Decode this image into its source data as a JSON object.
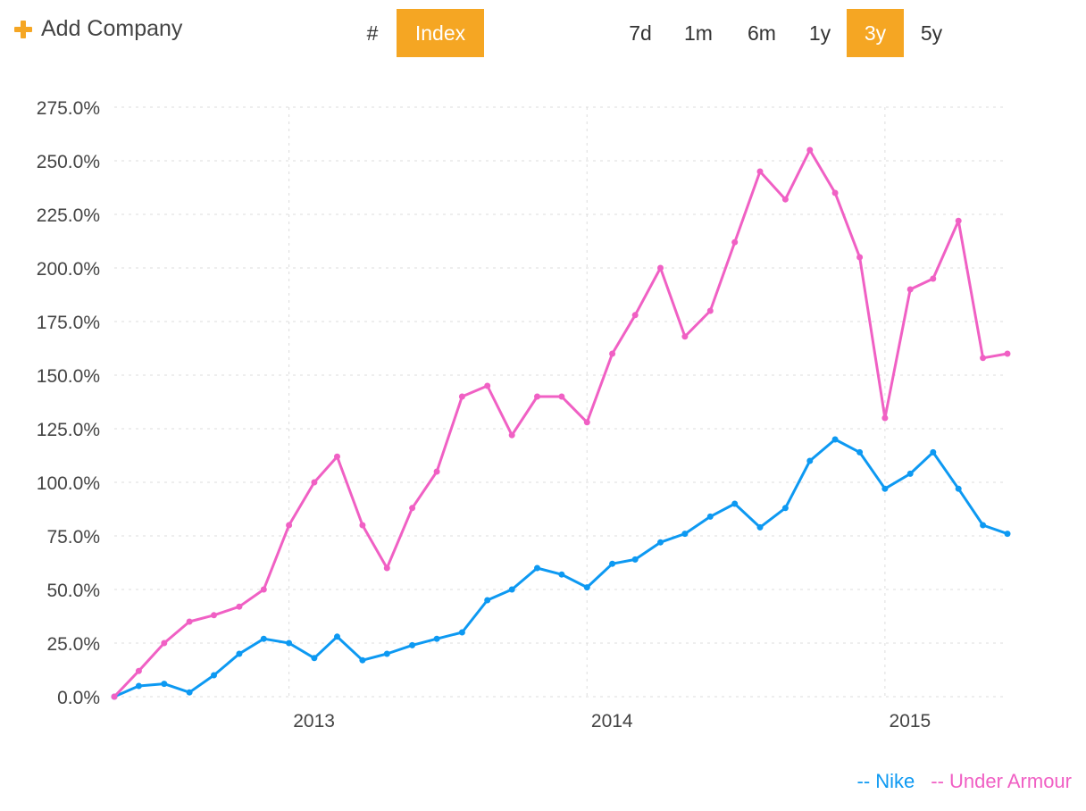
{
  "toolbar": {
    "add_company_label": "Add Company",
    "mode_buttons": [
      {
        "label": "#",
        "active": false
      },
      {
        "label": "Index",
        "active": true
      }
    ],
    "range_buttons": [
      {
        "label": "7d",
        "active": false
      },
      {
        "label": "1m",
        "active": false
      },
      {
        "label": "6m",
        "active": false
      },
      {
        "label": "1y",
        "active": false
      },
      {
        "label": "3y",
        "active": true
      },
      {
        "label": "5y",
        "active": false
      }
    ]
  },
  "colors": {
    "accent": "#f5a623",
    "nike": "#0d99f2",
    "under_armour": "#f060c4",
    "grid": "#dddddd",
    "axis_text": "#444444"
  },
  "legend": {
    "items": [
      {
        "label": "-- Nike",
        "color": "#0d99f2"
      },
      {
        "label": "-- Under Armour",
        "color": "#f060c4"
      }
    ]
  },
  "chart_data": {
    "type": "line",
    "y_axis": {
      "min": 0,
      "max": 275,
      "ticks": [
        0,
        25,
        50,
        75,
        100,
        125,
        150,
        175,
        200,
        225,
        250,
        275
      ],
      "tick_labels": [
        "0.0%",
        "25.0%",
        "50.0%",
        "75.0%",
        "100.0%",
        "125.0%",
        "150.0%",
        "175.0%",
        "200.0%",
        "225.0%",
        "250.0%",
        "275.0%"
      ]
    },
    "x_axis": {
      "min": "2012-06-01",
      "max": "2015-05-31",
      "ticks": [
        "2013-01-01",
        "2014-01-01",
        "2015-01-01"
      ],
      "tick_labels": [
        "2013",
        "2014",
        "2015"
      ]
    },
    "grid": true,
    "legend_position": "bottom-right",
    "series": [
      {
        "name": "Nike",
        "points": [
          [
            "2012-06-01",
            0
          ],
          [
            "2012-07-01",
            5
          ],
          [
            "2012-08-01",
            6
          ],
          [
            "2012-09-01",
            2
          ],
          [
            "2012-10-01",
            10
          ],
          [
            "2012-11-01",
            20
          ],
          [
            "2012-12-01",
            27
          ],
          [
            "2013-01-01",
            25
          ],
          [
            "2013-02-01",
            18
          ],
          [
            "2013-03-01",
            28
          ],
          [
            "2013-04-01",
            17
          ],
          [
            "2013-05-01",
            20
          ],
          [
            "2013-06-01",
            24
          ],
          [
            "2013-07-01",
            27
          ],
          [
            "2013-08-01",
            30
          ],
          [
            "2013-09-01",
            45
          ],
          [
            "2013-10-01",
            50
          ],
          [
            "2013-11-01",
            60
          ],
          [
            "2013-12-01",
            57
          ],
          [
            "2014-01-01",
            51
          ],
          [
            "2014-02-01",
            62
          ],
          [
            "2014-03-01",
            64
          ],
          [
            "2014-04-01",
            72
          ],
          [
            "2014-05-01",
            76
          ],
          [
            "2014-06-01",
            84
          ],
          [
            "2014-07-01",
            90
          ],
          [
            "2014-08-01",
            79
          ],
          [
            "2014-09-01",
            88
          ],
          [
            "2014-10-01",
            110
          ],
          [
            "2014-11-01",
            120
          ],
          [
            "2014-12-01",
            114
          ],
          [
            "2015-01-01",
            97
          ],
          [
            "2015-02-01",
            104
          ],
          [
            "2015-03-01",
            114
          ],
          [
            "2015-04-01",
            97
          ],
          [
            "2015-05-01",
            80
          ],
          [
            "2015-05-31",
            76
          ]
        ]
      },
      {
        "name": "Under Armour",
        "points": [
          [
            "2012-06-01",
            0
          ],
          [
            "2012-07-01",
            12
          ],
          [
            "2012-08-01",
            25
          ],
          [
            "2012-09-01",
            35
          ],
          [
            "2012-10-01",
            38
          ],
          [
            "2012-11-01",
            42
          ],
          [
            "2012-12-01",
            50
          ],
          [
            "2013-01-01",
            80
          ],
          [
            "2013-02-01",
            100
          ],
          [
            "2013-03-01",
            112
          ],
          [
            "2013-04-01",
            80
          ],
          [
            "2013-05-01",
            60
          ],
          [
            "2013-06-01",
            88
          ],
          [
            "2013-07-01",
            105
          ],
          [
            "2013-08-01",
            140
          ],
          [
            "2013-09-01",
            145
          ],
          [
            "2013-10-01",
            122
          ],
          [
            "2013-11-01",
            140
          ],
          [
            "2013-12-01",
            140
          ],
          [
            "2014-01-01",
            128
          ],
          [
            "2014-02-01",
            160
          ],
          [
            "2014-03-01",
            178
          ],
          [
            "2014-04-01",
            200
          ],
          [
            "2014-05-01",
            168
          ],
          [
            "2014-06-01",
            180
          ],
          [
            "2014-07-01",
            212
          ],
          [
            "2014-08-01",
            245
          ],
          [
            "2014-09-01",
            232
          ],
          [
            "2014-10-01",
            255
          ],
          [
            "2014-11-01",
            235
          ],
          [
            "2014-12-01",
            205
          ],
          [
            "2015-01-01",
            130
          ],
          [
            "2015-02-01",
            190
          ],
          [
            "2015-03-01",
            195
          ],
          [
            "2015-04-01",
            222
          ],
          [
            "2015-05-01",
            158
          ],
          [
            "2015-05-31",
            160
          ]
        ]
      }
    ]
  }
}
